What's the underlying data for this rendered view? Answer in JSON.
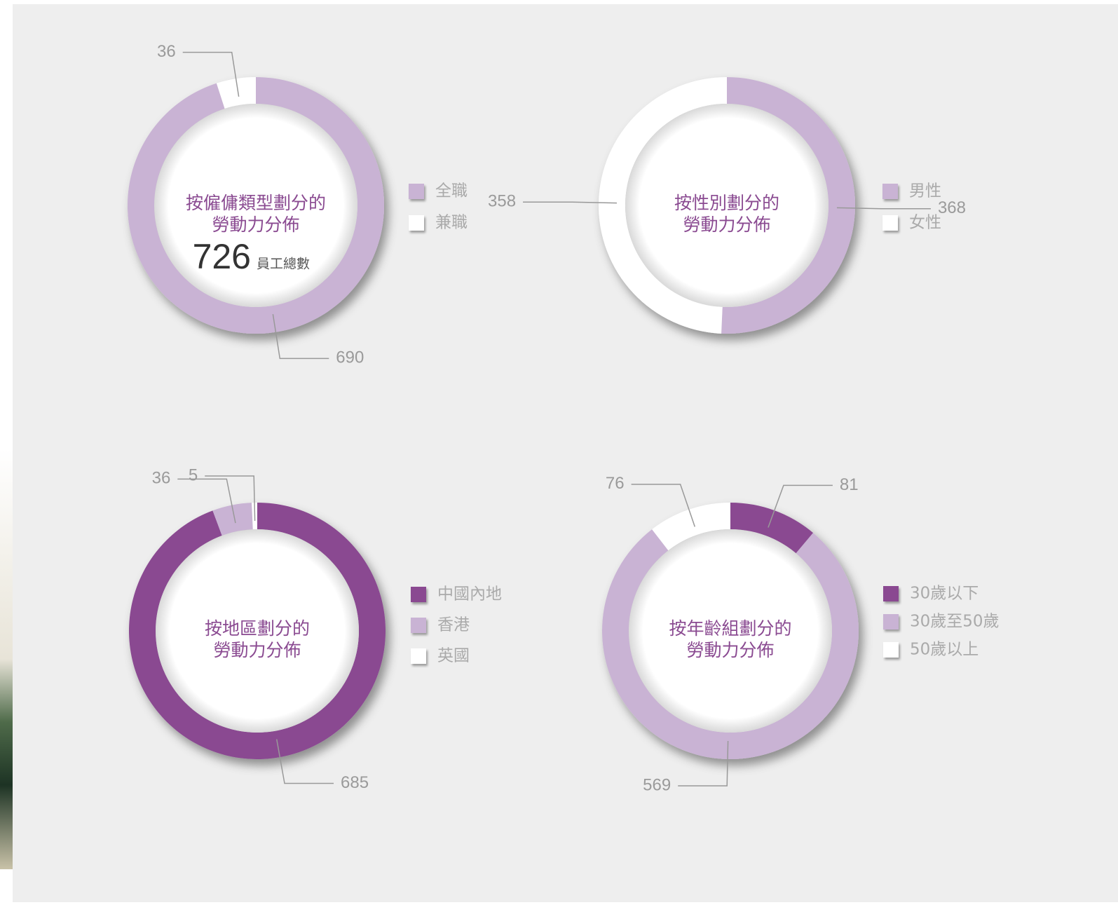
{
  "chart_data": [
    {
      "type": "pie",
      "title": [
        "按僱傭類型劃分的",
        "勞動力分佈"
      ],
      "total": 726,
      "total_label": "員工總數",
      "categories": [
        "全職",
        "兼職"
      ],
      "values": [
        690,
        36
      ],
      "colors": [
        "#c9b3d4",
        "#ffffff"
      ]
    },
    {
      "type": "pie",
      "title": [
        "按性別劃分的",
        "勞動力分佈"
      ],
      "categories": [
        "男性",
        "女性"
      ],
      "values": [
        368,
        358
      ],
      "colors": [
        "#c9b3d4",
        "#ffffff"
      ]
    },
    {
      "type": "pie",
      "title": [
        "按地區劃分的",
        "勞動力分佈"
      ],
      "categories": [
        "中國內地",
        "香港",
        "英國"
      ],
      "values": [
        685,
        36,
        5
      ],
      "colors": [
        "#8a4a91",
        "#c9b3d4",
        "#ffffff"
      ]
    },
    {
      "type": "pie",
      "title": [
        "按年齡組劃分的",
        "勞動力分佈"
      ],
      "categories": [
        "30歲以下",
        "30歲至50歲",
        "50歲以上"
      ],
      "values": [
        81,
        569,
        76
      ],
      "colors": [
        "#8a4a91",
        "#c9b3d4",
        "#ffffff"
      ]
    }
  ]
}
